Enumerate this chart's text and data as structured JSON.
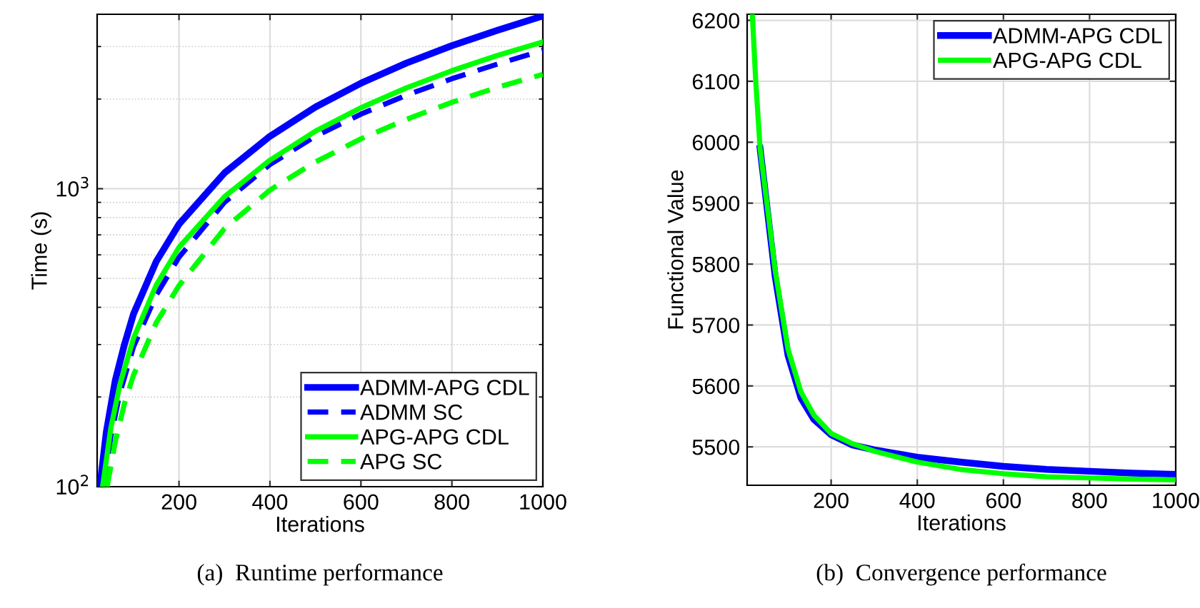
{
  "chart_data": [
    {
      "type": "line",
      "xlabel": "Iterations",
      "ylabel": "Time (s)",
      "log": "y",
      "grid": true,
      "legend": "bottom right",
      "xlim": [
        20,
        1000
      ],
      "ylim": [
        100,
        3850
      ],
      "xticks": [
        200,
        400,
        600,
        800,
        1000
      ],
      "yticks": [
        {
          "value": 100,
          "label": "10$^{2}$"
        },
        {
          "value": 1000,
          "label": "10$^{3}$"
        }
      ],
      "annotations": [
        "(a)  Runtime performance"
      ],
      "series": [
        {
          "name": "ADMM-APG CDL",
          "color": "#0000ff",
          "line_style": "solid",
          "x": [
            26,
            40,
            60,
            80,
            100,
            150,
            200,
            300,
            400,
            500,
            600,
            700,
            800,
            900,
            1000
          ],
          "values": [
            100,
            152,
            228,
            300,
            380,
            570,
            760,
            1130,
            1500,
            1880,
            2260,
            2640,
            3020,
            3400,
            3800
          ]
        },
        {
          "name": "ADMM SC",
          "color": "#0000ff",
          "line_style": "dashed",
          "x": [
            34,
            50,
            70,
            100,
            150,
            200,
            300,
            400,
            500,
            600,
            700,
            800,
            900,
            1000
          ],
          "values": [
            100,
            147,
            206,
            295,
            440,
            589,
            900,
            1206,
            1500,
            1780,
            2060,
            2340,
            2620,
            2913
          ]
        },
        {
          "name": "APG-APG CDL",
          "color": "#00ff00",
          "line_style": "solid",
          "x": [
            32,
            50,
            70,
            100,
            150,
            200,
            300,
            400,
            500,
            600,
            700,
            800,
            900,
            1000
          ],
          "values": [
            100,
            157,
            220,
            315,
            475,
            636,
            940,
            1247,
            1560,
            1870,
            2180,
            2490,
            2800,
            3110
          ]
        },
        {
          "name": "APG SC",
          "color": "#00ff00",
          "line_style": "dashed",
          "x": [
            42,
            60,
            80,
            100,
            150,
            200,
            300,
            400,
            500,
            600,
            700,
            800,
            900,
            1000
          ],
          "values": [
            100,
            142,
            190,
            237,
            355,
            473,
            735,
            990,
            1230,
            1470,
            1710,
            1950,
            2190,
            2420
          ]
        }
      ]
    },
    {
      "type": "line",
      "xlabel": "Iterations",
      "ylabel": "Functional Value",
      "grid": true,
      "legend": "top right",
      "xlim": [
        5,
        1000
      ],
      "ylim": [
        5437,
        6210
      ],
      "xticks": [
        200,
        400,
        600,
        800,
        1000
      ],
      "yticks": [
        5500,
        5600,
        5700,
        5800,
        5900,
        6000,
        6100,
        6200
      ],
      "annotations": [
        "(b)  Convergence performance"
      ],
      "series": [
        {
          "name": "ADMM-APG CDL",
          "color": "#0000ff",
          "line_style": "solid",
          "x": [
            35,
            50,
            70,
            100,
            130,
            160,
            200,
            250,
            300,
            400,
            500,
            600,
            700,
            800,
            900,
            1000
          ],
          "values": [
            5990,
            5900,
            5780,
            5650,
            5580,
            5545,
            5520,
            5503,
            5495,
            5483,
            5475,
            5468,
            5463,
            5460,
            5457,
            5455
          ]
        },
        {
          "name": "APG-APG CDL",
          "color": "#00ff00",
          "line_style": "solid",
          "x": [
            17,
            25,
            35,
            50,
            70,
            100,
            130,
            160,
            200,
            250,
            300,
            400,
            500,
            600,
            700,
            800,
            900,
            1000
          ],
          "values": [
            6210,
            6100,
            5990,
            5905,
            5790,
            5660,
            5590,
            5552,
            5522,
            5505,
            5493,
            5475,
            5463,
            5456,
            5451,
            5449,
            5447,
            5446
          ]
        }
      ]
    }
  ]
}
